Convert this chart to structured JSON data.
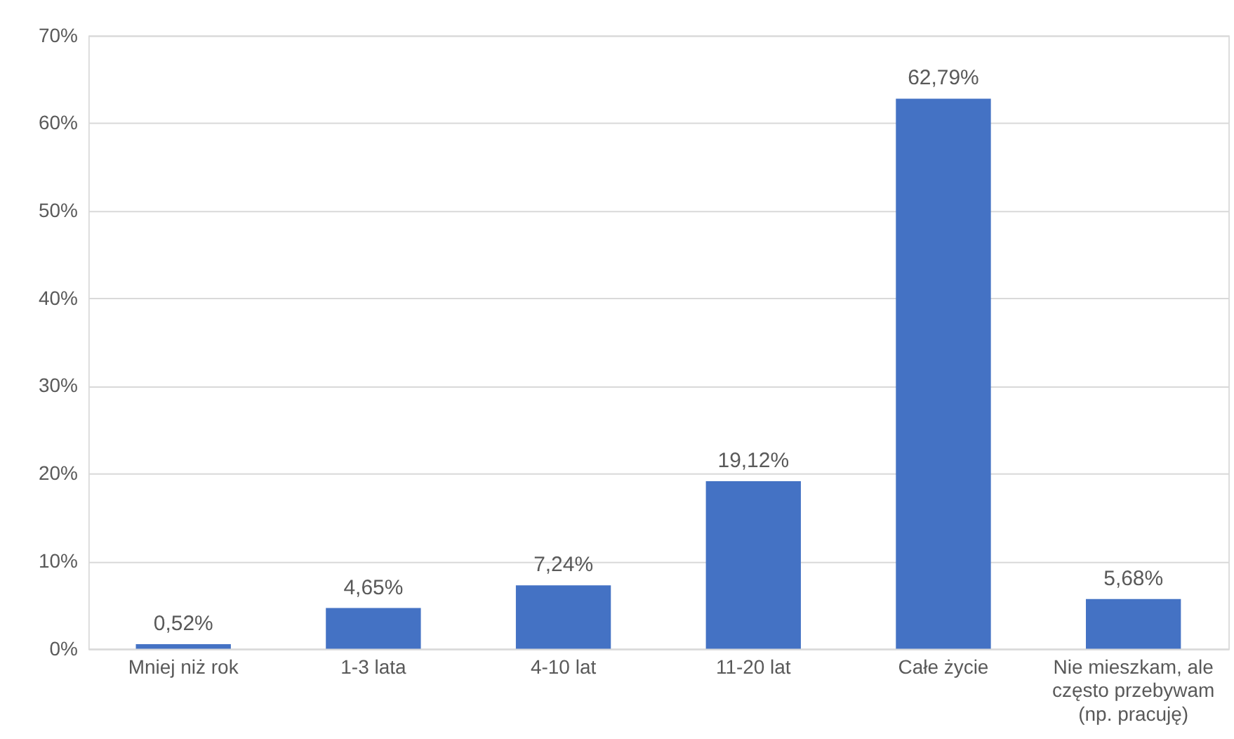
{
  "chart_data": {
    "type": "bar",
    "categories": [
      "Mniej niż rok",
      "1-3 lata",
      "4-10 lat",
      "11-20 lat",
      "Całe życie",
      "Nie mieszkam, ale często przebywam (np. pracuję)"
    ],
    "values": [
      0.52,
      4.65,
      7.24,
      19.12,
      62.79,
      5.68
    ],
    "value_labels": [
      "0,52%",
      "4,65%",
      "7,24%",
      "19,12%",
      "62,79%",
      "5,68%"
    ],
    "color": "#4472c4",
    "ylim": [
      0,
      70
    ],
    "yticks": [
      {
        "value": 0,
        "label": "0%"
      },
      {
        "value": 10,
        "label": "10%"
      },
      {
        "value": 20,
        "label": "20%"
      },
      {
        "value": 30,
        "label": "30%"
      },
      {
        "value": 40,
        "label": "40%"
      },
      {
        "value": 50,
        "label": "50%"
      },
      {
        "value": 60,
        "label": "60%"
      },
      {
        "value": 70,
        "label": "70%"
      }
    ],
    "grid": "y"
  }
}
